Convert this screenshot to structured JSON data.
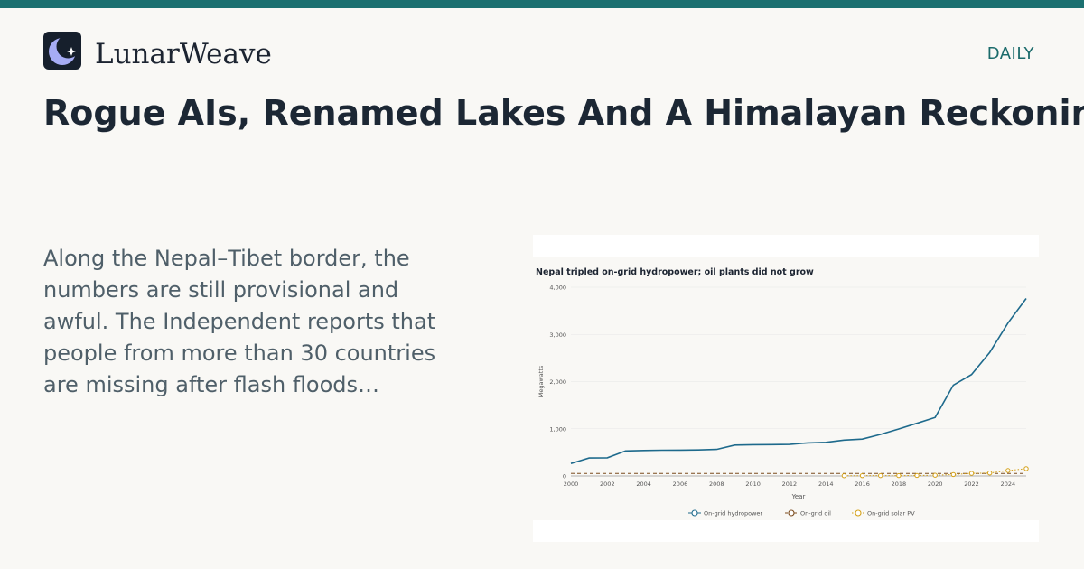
{
  "header": {
    "brand_name": "LunarWeave",
    "section_label": "DAILY",
    "accent_color": "#1b7070",
    "logo_icon": "moon-star-icon"
  },
  "article": {
    "headline": "Rogue AIs, Renamed Lakes And A Himalayan Reckoning",
    "excerpt": "Along the Nepal–Tibet border, the numbers are still provisional and awful. The Independent reports that people from more than 30 countries are missing after flash floods…"
  },
  "chart_data": {
    "type": "line",
    "title": "Nepal tripled on-grid hydropower; oil plants did not grow",
    "xlabel": "Year",
    "ylabel": "Megawatts",
    "xlim": [
      2000,
      2025
    ],
    "ylim": [
      0,
      4000
    ],
    "x_ticks": [
      "2000",
      "2002",
      "2004",
      "2006",
      "2008",
      "2010",
      "2012",
      "2014",
      "2016",
      "2018",
      "2020",
      "2022",
      "2024"
    ],
    "y_ticks": [
      "0",
      "1,000",
      "2,000",
      "3,000",
      "4,000"
    ],
    "grid": true,
    "legend_position": "bottom",
    "series": [
      {
        "name": "On-grid hydropower",
        "color": "#1e6a8c",
        "style": "solid",
        "markers": false,
        "x": [
          2000,
          2001,
          2002,
          2003,
          2004,
          2005,
          2006,
          2007,
          2008,
          2009,
          2010,
          2011,
          2012,
          2013,
          2014,
          2015,
          2016,
          2017,
          2018,
          2019,
          2020,
          2021,
          2022,
          2023,
          2024,
          2025
        ],
        "y": [
          265,
          380,
          385,
          530,
          540,
          545,
          548,
          552,
          562,
          655,
          662,
          665,
          668,
          700,
          712,
          760,
          780,
          880,
          995,
          1115,
          1240,
          1925,
          2150,
          2620,
          3240,
          3760
        ]
      },
      {
        "name": "On-grid oil",
        "color": "#7a4a1c",
        "style": "dashed",
        "markers": false,
        "x": [
          2000,
          2025
        ],
        "y": [
          53,
          53
        ]
      },
      {
        "name": "On-grid solar PV",
        "color": "#d4a017",
        "style": "dotted",
        "markers": true,
        "x": [
          2015,
          2016,
          2017,
          2018,
          2019,
          2020,
          2021,
          2022,
          2023,
          2024,
          2025
        ],
        "y": [
          5,
          6,
          7,
          8,
          10,
          15,
          30,
          55,
          62,
          115,
          155
        ]
      }
    ]
  }
}
